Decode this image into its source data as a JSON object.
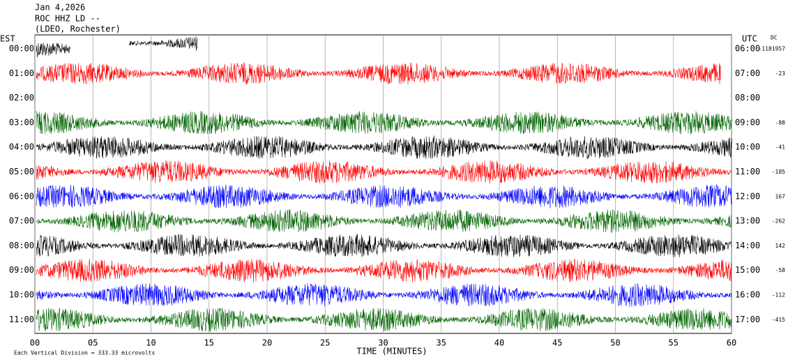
{
  "chart_data": {
    "type": "seismogram",
    "title": "Jan 4,2026",
    "subtitle": "ROC HHZ LD --",
    "station": "(LDEO, Rochester)",
    "left_axis_label": "EST",
    "right_axis_label": "UTC",
    "dc_label": "DC",
    "xlabel": "TIME (MINUTES)",
    "note": "Each Vertical Division =  333.33 microvolts",
    "xlim": [
      0,
      60
    ],
    "xticks": [
      {
        "value": 0,
        "label": "00"
      },
      {
        "value": 5,
        "label": "05"
      },
      10,
      15,
      20,
      25,
      30,
      35,
      40,
      45,
      50,
      55,
      60
    ],
    "grid": true,
    "rows": [
      {
        "est": "00:00",
        "utc": "06:00",
        "dc": -1181957,
        "color": "#000000"
      },
      {
        "est": "01:00",
        "utc": "07:00",
        "dc": -23,
        "color": "#ff0000"
      },
      {
        "est": "02:00",
        "utc": "08:00",
        "dc": null,
        "color": "#0000ff"
      },
      {
        "est": "03:00",
        "utc": "09:00",
        "dc": -88,
        "color": "#006400"
      },
      {
        "est": "04:00",
        "utc": "10:00",
        "dc": -41,
        "color": "#000000"
      },
      {
        "est": "05:00",
        "utc": "11:00",
        "dc": -185,
        "color": "#ff0000"
      },
      {
        "est": "06:00",
        "utc": "12:00",
        "dc": 167,
        "color": "#0000ff"
      },
      {
        "est": "07:00",
        "utc": "13:00",
        "dc": -262,
        "color": "#006400"
      },
      {
        "est": "08:00",
        "utc": "14:00",
        "dc": 142,
        "color": "#000000"
      },
      {
        "est": "09:00",
        "utc": "15:00",
        "dc": -58,
        "color": "#ff0000"
      },
      {
        "est": "10:00",
        "utc": "16:00",
        "dc": -112,
        "color": "#0000ff"
      },
      {
        "est": "11:00",
        "utc": "17:00",
        "dc": -415,
        "color": "#006400"
      }
    ]
  }
}
